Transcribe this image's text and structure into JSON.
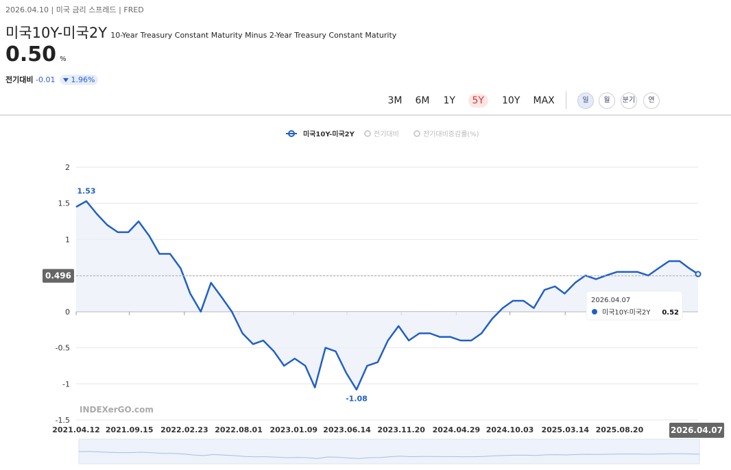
{
  "header": {
    "date": "2026.04.10",
    "separator": "|",
    "category": "미국 금리 스프레드",
    "source": "FRED",
    "title": "미국10Y-미국2Y",
    "subtitle": "10-Year Treasury Constant Maturity Minus 2-Year Treasury Constant Maturity",
    "value": "0.50",
    "unit": "%",
    "change_label": "전기대비",
    "change": "-0.01",
    "change_pct": "1.96%"
  },
  "periods": [
    "3M",
    "6M",
    "1Y",
    "5Y",
    "10Y",
    "MAX"
  ],
  "selected_period": "5Y",
  "frequencies": [
    "일",
    "월",
    "분기",
    "연"
  ],
  "selected_frequency": "일",
  "chart_data": {
    "type": "line",
    "series": [
      {
        "name": "미국10Y-미국2Y",
        "color": "#1f5fc9",
        "x": [
          "2021.04.12",
          "2021.05.12",
          "2021.06.12",
          "2021.07.12",
          "2021.08.12",
          "2021.09.12",
          "2021.10.12",
          "2021.11.12",
          "2021.12.12",
          "2022.01.12",
          "2022.02.12",
          "2022.03.12",
          "2022.04.12",
          "2022.05.12",
          "2022.06.12",
          "2022.07.12",
          "2022.08.12",
          "2022.09.12",
          "2022.10.12",
          "2022.11.12",
          "2022.12.12",
          "2023.01.12",
          "2023.02.12",
          "2023.03.12",
          "2023.04.12",
          "2023.05.12",
          "2023.06.12",
          "2023.07.12",
          "2023.08.12",
          "2023.09.12",
          "2023.10.12",
          "2023.11.12",
          "2023.12.12",
          "2024.01.12",
          "2024.02.12",
          "2024.03.12",
          "2024.04.12",
          "2024.05.12",
          "2024.06.12",
          "2024.07.12",
          "2024.08.12",
          "2024.09.12",
          "2024.10.12",
          "2024.11.12",
          "2024.12.12",
          "2025.01.12",
          "2025.02.12",
          "2025.03.12",
          "2025.04.12",
          "2025.05.12",
          "2025.06.12",
          "2025.07.12",
          "2025.08.12",
          "2025.09.12",
          "2025.10.12",
          "2025.11.12",
          "2025.12.12",
          "2026.01.12",
          "2026.02.12",
          "2026.03.12",
          "2026.04.07"
        ],
        "values": [
          1.45,
          1.53,
          1.35,
          1.2,
          1.1,
          1.1,
          1.25,
          1.05,
          0.8,
          0.8,
          0.6,
          0.25,
          0.0,
          0.4,
          0.2,
          0.0,
          -0.3,
          -0.45,
          -0.4,
          -0.55,
          -0.75,
          -0.65,
          -0.75,
          -1.05,
          -0.5,
          -0.55,
          -0.85,
          -1.08,
          -0.75,
          -0.7,
          -0.4,
          -0.2,
          -0.4,
          -0.3,
          -0.3,
          -0.35,
          -0.35,
          -0.4,
          -0.4,
          -0.3,
          -0.1,
          0.05,
          0.15,
          0.15,
          0.05,
          0.3,
          0.35,
          0.25,
          0.4,
          0.5,
          0.45,
          0.5,
          0.55,
          0.55,
          0.55,
          0.5,
          0.6,
          0.7,
          0.7,
          0.6,
          0.52
        ]
      }
    ],
    "inactive_legend": [
      "전기대비",
      "전기대비증감률(%)"
    ],
    "xlim": [
      "2021.04.12",
      "2026.04.07"
    ],
    "xticks": [
      "2021.04.12",
      "2021.09.15",
      "2022.02.23",
      "2022.08.01",
      "2023.01.09",
      "2023.06.14",
      "2023.11.20",
      "2024.04.29",
      "2024.10.03",
      "2025.03.14",
      "2025.08.20"
    ],
    "ylim": [
      -1.5,
      2
    ],
    "yticks": [
      2,
      1.5,
      1,
      0.5,
      0,
      -0.5,
      -1,
      -1.5
    ],
    "grid": true,
    "reference_line": 0.496,
    "annotations": [
      {
        "x": "2021.05.12",
        "value": 1.53
      },
      {
        "x": "2023.07.12",
        "value": -1.08
      }
    ],
    "tooltip": {
      "x": "2026.04.07",
      "value": 0.52
    },
    "watermark": "INDEXerGO.com"
  }
}
